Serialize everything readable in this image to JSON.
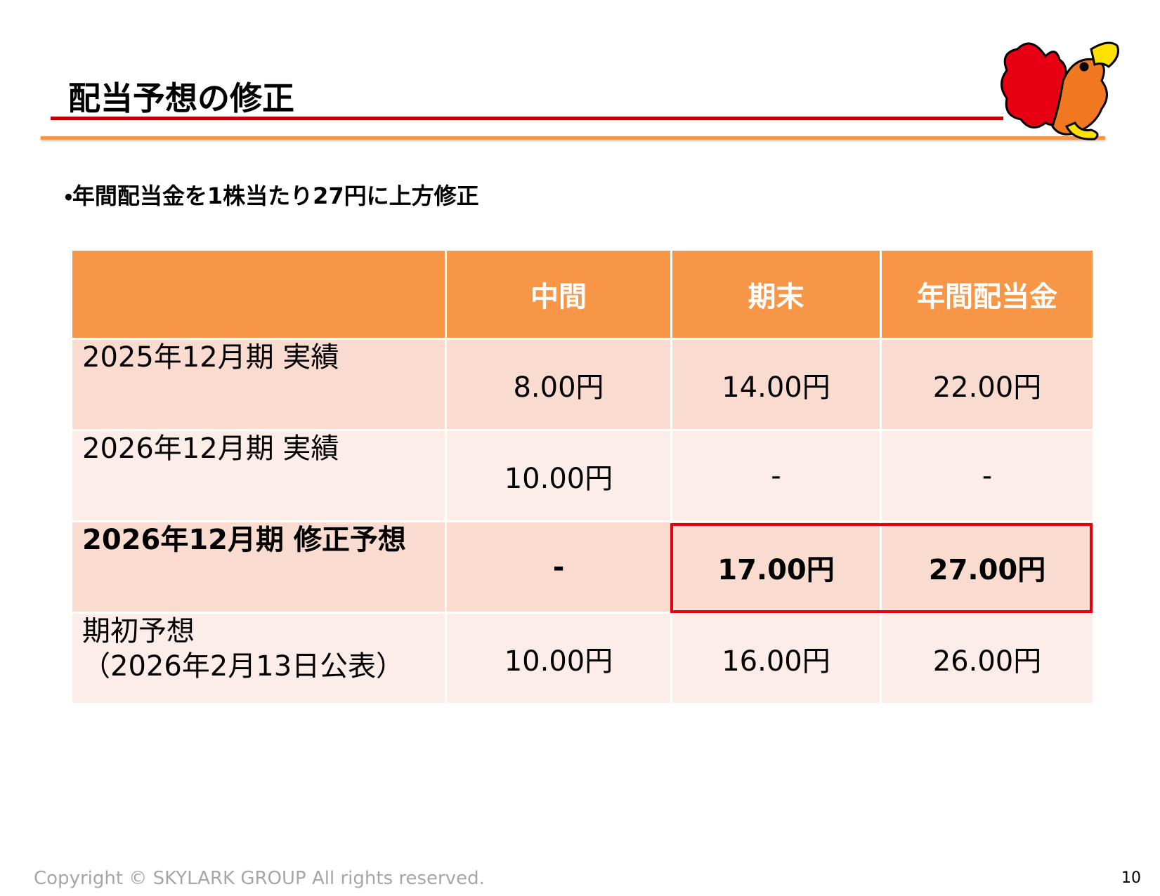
{
  "header": {
    "title": "配当予想の修正"
  },
  "bullet": "・年間配当金を1株当たり27円に上方修正",
  "table": {
    "columns": [
      "中間",
      "期末",
      "年間配当金"
    ],
    "rows": [
      {
        "label": [
          "2025年12月期 実績"
        ],
        "values": [
          "8.00円",
          "14.00円",
          "22.00円"
        ]
      },
      {
        "label": [
          "2026年12月期 実績"
        ],
        "values": [
          "10.00円",
          "-",
          "-"
        ]
      },
      {
        "label": [
          "2026年12月期 修正予想"
        ],
        "values": [
          "-",
          "17.00円",
          "27.00円"
        ]
      },
      {
        "label": [
          "期初予想",
          "（2026年2月13日公表）"
        ],
        "values": [
          "10.00円",
          "16.00円",
          "26.00円"
        ]
      }
    ]
  },
  "footer": {
    "copyright": "Copyright © SKYLARK GROUP All rights reserved.",
    "page": "10"
  }
}
